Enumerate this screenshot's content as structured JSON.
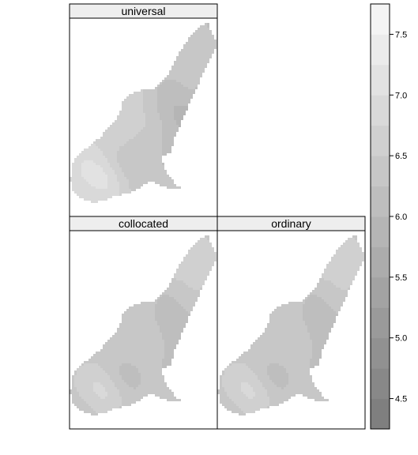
{
  "chart_data": {
    "type": "heatmap",
    "panels": [
      {
        "name": "universal",
        "level": 6.45,
        "trend": "gradient"
      },
      {
        "name": "collocated",
        "level": 6.35,
        "trend": "flat"
      },
      {
        "name": "ordinary",
        "level": 6.35,
        "trend": "flat"
      }
    ],
    "colorkey": {
      "ticks": [
        "4.5",
        "5.0",
        "5.5",
        "6.0",
        "6.5",
        "7.0",
        "7.5"
      ],
      "tick_values": [
        4.5,
        5.0,
        5.5,
        6.0,
        6.5,
        7.0,
        7.5
      ],
      "range": [
        4.25,
        7.75
      ],
      "bin_width": 0.25
    },
    "colors": {
      "dark": "#7f7f7f",
      "light": "#f4f4f4"
    },
    "legend_placement": "right"
  }
}
